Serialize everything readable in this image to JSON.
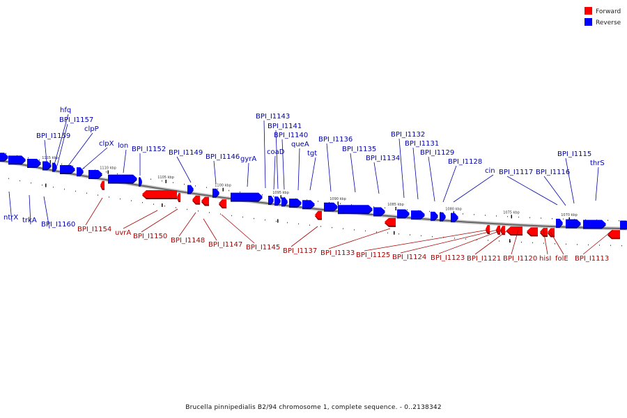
{
  "colors": {
    "forward": "#ff0000",
    "reverse": "#0000ff",
    "backbone": "#999999"
  },
  "legend": {
    "forward_label": "Forward",
    "reverse_label": "Reverse"
  },
  "caption": "Brucella pinnipedialis B2/94 chromosome 1, complete sequence. - 0..2138342",
  "ticks": [
    "1115 kbp",
    "1110 kbp",
    "1105 kbp",
    "1100 kbp",
    "1095 kbp",
    "1090 kbp",
    "1085 kbp",
    "1080 kbp",
    "1075 kbp",
    "1070 kbp"
  ],
  "reverse_labels": [
    "hfq",
    "BPI_I1157",
    "BPI_I1159",
    "clpP",
    "clpX",
    "lon",
    "BPI_I1152",
    "BPI_I1149",
    "BPI_I1146",
    "gyrA",
    "BPI_I1143",
    "BPI_I1141",
    "BPI_I1140",
    "coaD",
    "queA",
    "tgt",
    "BPI_I1136",
    "BPI_I1135",
    "BPI_I1134",
    "BPI_I1132",
    "BPI_I1131",
    "BPI_I1129",
    "BPI_I1128",
    "cin",
    "BPI_I1117",
    "BPI_I1116",
    "BPI_I1115",
    "thrS",
    "ntrX",
    "trkA",
    "BPI_I1160"
  ],
  "forward_labels": [
    "BPI_I1154",
    "uvrA",
    "BPI_I1150",
    "BPI_I1148",
    "BPI_I1147",
    "BPI_I1145",
    "BPI_I1137",
    "BPI_I1133",
    "BPI_I1125",
    "BPI_I1124",
    "BPI_I1123",
    "BPI_I1121",
    "BPI_I1120",
    "hisI",
    "folE",
    "BPI_I1113"
  ]
}
